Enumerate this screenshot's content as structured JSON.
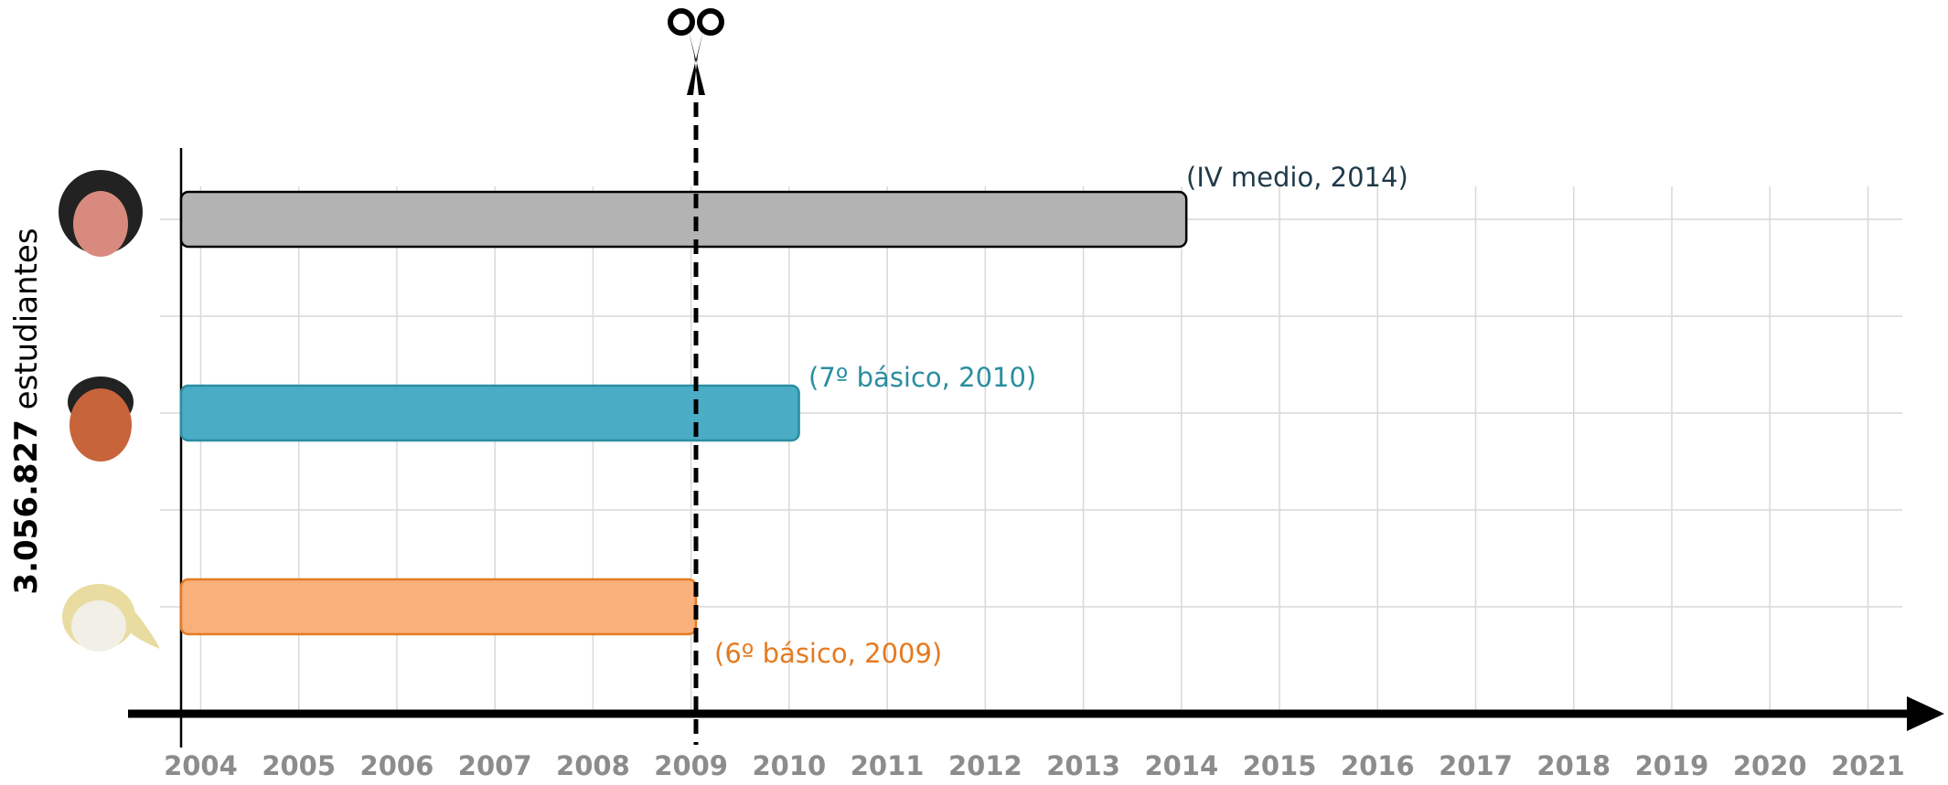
{
  "chart_data": {
    "type": "timeline",
    "y_label_bold": "3.056.827",
    "y_label": "estudiantes",
    "bars": [
      {
        "label": "(IV medio, 2014)",
        "start": 2003.8,
        "end": 2014.05,
        "color": "#b3b3b3",
        "stroke": "#000000",
        "label_color": "#1f3a4a"
      },
      {
        "label": "(7º básico, 2010)",
        "start": 2003.8,
        "end": 2010.1,
        "color": "#4aacc5",
        "stroke": "#2a8ea0",
        "label_color": "#2a8ea0"
      },
      {
        "label": "(6º básico, 2009)",
        "start": 2003.8,
        "end": 2009.05,
        "color": "#f9b07a",
        "stroke": "#e57a20",
        "label_color": "#e57a20"
      }
    ],
    "cut_line": 2009.05,
    "xlim": [
      2003.8,
      2021.35
    ],
    "xticks": [
      2004,
      2005,
      2006,
      2007,
      2008,
      2009,
      2010,
      2011,
      2012,
      2013,
      2014,
      2015,
      2016,
      2017,
      2018,
      2019,
      2020,
      2021
    ],
    "grid": true
  }
}
